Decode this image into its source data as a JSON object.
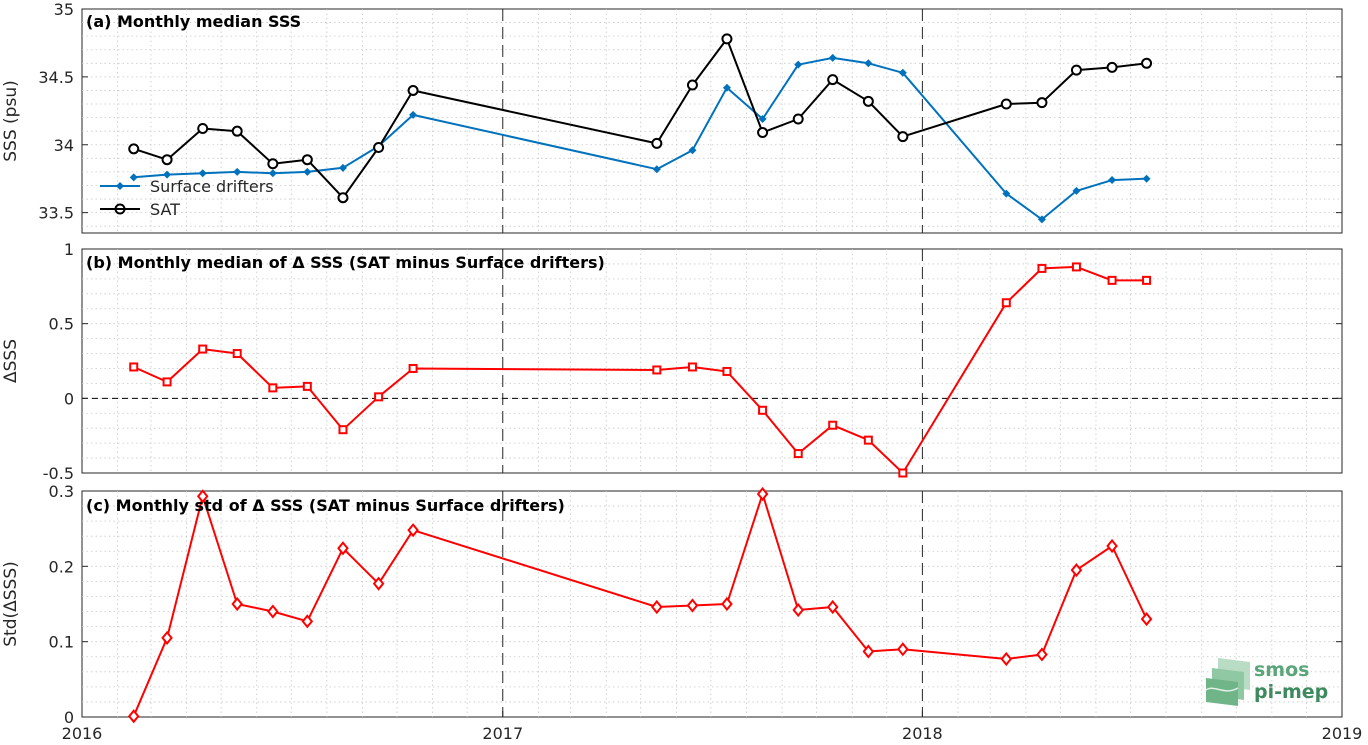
{
  "chart_data": [
    {
      "type": "line",
      "title": "(a) Monthly median SSS",
      "ylabel": "SSS (psu)",
      "xlim": [
        "2016-01-01",
        "2019-01-01"
      ],
      "ylim": [
        33.35,
        35.0
      ],
      "yticks": [
        "33.5",
        "34",
        "34.5",
        "35"
      ],
      "grid": true,
      "legend_position": "bottom-left",
      "series": [
        {
          "name": "Surface drifters",
          "color": "#0072bd",
          "marker": "diamond",
          "x": [
            "2016-02-15",
            "2016-03-15",
            "2016-04-15",
            "2016-05-15",
            "2016-06-15",
            "2016-07-15",
            "2016-08-15",
            "2016-09-15",
            "2016-10-15",
            "2017-05-15",
            "2017-06-15",
            "2017-07-15",
            "2017-08-15",
            "2017-09-15",
            "2017-10-15",
            "2017-11-15",
            "2017-12-15",
            "2018-03-15",
            "2018-04-15",
            "2018-05-15",
            "2018-06-15",
            "2018-07-15"
          ],
          "y": [
            33.76,
            33.78,
            33.79,
            33.8,
            33.79,
            33.8,
            33.83,
            33.99,
            34.22,
            33.82,
            33.96,
            34.42,
            34.19,
            34.59,
            34.64,
            34.6,
            34.53,
            33.64,
            33.45,
            33.66,
            33.74,
            33.75
          ]
        },
        {
          "name": "SAT",
          "color": "#000000",
          "marker": "circle",
          "x": [
            "2016-02-15",
            "2016-03-15",
            "2016-04-15",
            "2016-05-15",
            "2016-06-15",
            "2016-07-15",
            "2016-08-15",
            "2016-09-15",
            "2016-10-15",
            "2017-05-15",
            "2017-06-15",
            "2017-07-15",
            "2017-08-15",
            "2017-09-15",
            "2017-10-15",
            "2017-11-15",
            "2017-12-15",
            "2018-03-15",
            "2018-04-15",
            "2018-05-15",
            "2018-06-15",
            "2018-07-15"
          ],
          "y": [
            33.97,
            33.89,
            34.12,
            34.1,
            33.86,
            33.89,
            33.61,
            33.98,
            34.4,
            34.01,
            34.44,
            34.78,
            34.09,
            34.19,
            34.48,
            34.32,
            34.06,
            34.3,
            34.31,
            34.55,
            34.57,
            34.6
          ]
        }
      ]
    },
    {
      "type": "line",
      "title": "(b) Monthly median of Δ SSS (SAT minus Surface drifters)",
      "ylabel": "ΔSSS",
      "xlim": [
        "2016-01-01",
        "2019-01-01"
      ],
      "ylim": [
        -0.5,
        1.0
      ],
      "yticks": [
        "-0.5",
        "0",
        "0.5",
        "1"
      ],
      "grid": true,
      "zero_line": true,
      "series": [
        {
          "color": "#ff0000",
          "marker": "square",
          "x": [
            "2016-02-15",
            "2016-03-15",
            "2016-04-15",
            "2016-05-15",
            "2016-06-15",
            "2016-07-15",
            "2016-08-15",
            "2016-09-15",
            "2016-10-15",
            "2017-05-15",
            "2017-06-15",
            "2017-07-15",
            "2017-08-15",
            "2017-09-15",
            "2017-10-15",
            "2017-11-15",
            "2017-12-15",
            "2018-03-15",
            "2018-04-15",
            "2018-05-15",
            "2018-06-15",
            "2018-07-15"
          ],
          "y": [
            0.21,
            0.11,
            0.33,
            0.3,
            0.07,
            0.08,
            -0.21,
            0.01,
            0.2,
            0.19,
            0.21,
            0.18,
            -0.08,
            -0.37,
            -0.18,
            -0.28,
            -0.5,
            0.64,
            0.87,
            0.88,
            0.79,
            0.79
          ]
        }
      ]
    },
    {
      "type": "line",
      "title": "(c) Monthly std of Δ SSS (SAT minus Surface drifters)",
      "ylabel": "Std(ΔSSS)",
      "xlim": [
        "2016-01-01",
        "2019-01-01"
      ],
      "ylim": [
        0,
        0.3
      ],
      "yticks": [
        "0",
        "0.1",
        "0.2",
        "0.3"
      ],
      "xticks": [
        "2016",
        "2017",
        "2018",
        "2019"
      ],
      "grid": true,
      "series": [
        {
          "color": "#ff0000",
          "marker": "diamond",
          "x": [
            "2016-02-15",
            "2016-03-15",
            "2016-04-15",
            "2016-05-15",
            "2016-06-15",
            "2016-07-15",
            "2016-08-15",
            "2016-09-15",
            "2016-10-15",
            "2017-05-15",
            "2017-06-15",
            "2017-07-15",
            "2017-08-15",
            "2017-09-15",
            "2017-10-15",
            "2017-11-15",
            "2017-12-15",
            "2018-03-15",
            "2018-04-15",
            "2018-05-15",
            "2018-06-15",
            "2018-07-15"
          ],
          "y": [
            0.001,
            0.105,
            0.293,
            0.15,
            0.14,
            0.127,
            0.224,
            0.177,
            0.248,
            0.146,
            0.148,
            0.15,
            0.296,
            0.142,
            0.146,
            0.087,
            0.09,
            0.077,
            0.083,
            0.195,
            0.227,
            0.13
          ]
        }
      ]
    }
  ],
  "logo": {
    "line1": "smos",
    "line2": "pi-mep"
  }
}
